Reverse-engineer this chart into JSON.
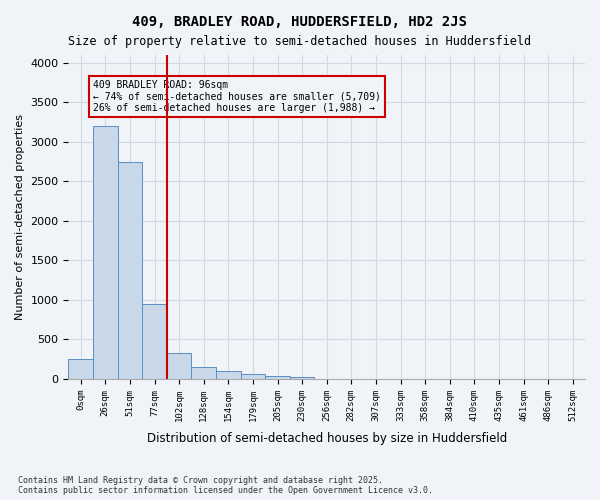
{
  "title": "409, BRADLEY ROAD, HUDDERSFIELD, HD2 2JS",
  "subtitle": "Size of property relative to semi-detached houses in Huddersfield",
  "xlabel": "Distribution of semi-detached houses by size in Huddersfield",
  "ylabel": "Number of semi-detached properties",
  "footer": "Contains HM Land Registry data © Crown copyright and database right 2025.\nContains public sector information licensed under the Open Government Licence v3.0.",
  "bar_color": "#c8d8e8",
  "bar_edge_color": "#5a8fc0",
  "grid_color": "#d0d8e0",
  "vline_color": "#cc0000",
  "vline_x": 4,
  "annotation_text": "409 BRADLEY ROAD: 96sqm\n← 74% of semi-detached houses are smaller (5,709)\n26% of semi-detached houses are larger (1,988) →",
  "annotation_box_color": "#cc0000",
  "categories": [
    "0sqm",
    "26sqm",
    "51sqm",
    "77sqm",
    "102sqm",
    "128sqm",
    "154sqm",
    "179sqm",
    "205sqm",
    "230sqm",
    "256sqm",
    "282sqm",
    "307sqm",
    "333sqm",
    "358sqm",
    "384sqm",
    "410sqm",
    "435sqm",
    "461sqm",
    "486sqm",
    "512sqm"
  ],
  "values": [
    250,
    3200,
    2750,
    950,
    325,
    155,
    95,
    60,
    35,
    20,
    5,
    0,
    0,
    0,
    0,
    0,
    0,
    0,
    0,
    0,
    0
  ],
  "ylim": [
    0,
    4100
  ],
  "yticks": [
    0,
    500,
    1000,
    1500,
    2000,
    2500,
    3000,
    3500,
    4000
  ],
  "background_color": "#f0f4f8"
}
